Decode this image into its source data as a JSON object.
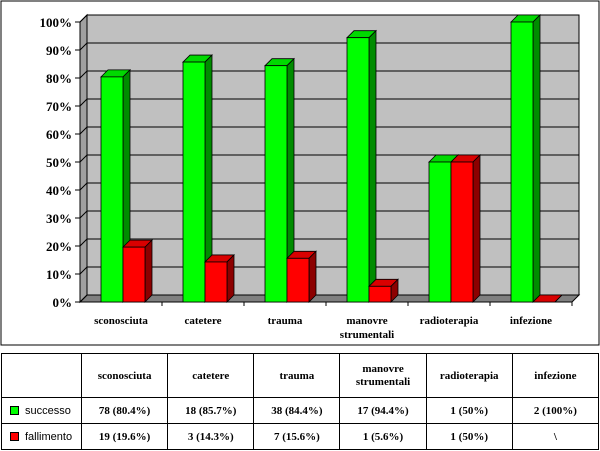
{
  "chart_data": {
    "type": "bar",
    "categories": [
      "sconosciuta",
      "catetere",
      "trauma",
      "manovre strumentali",
      "radioterapia",
      "infezione"
    ],
    "series": [
      {
        "name": "successo",
        "values": [
          80.4,
          85.7,
          84.4,
          94.4,
          50,
          100
        ],
        "color": "#00ff00"
      },
      {
        "name": "fallimento",
        "values": [
          19.6,
          14.3,
          15.6,
          5.6,
          50,
          0
        ],
        "color": "#ff0000"
      }
    ],
    "ylim": [
      0,
      100
    ],
    "yticks": [
      "0%",
      "10%",
      "20%",
      "30%",
      "40%",
      "50%",
      "60%",
      "70%",
      "80%",
      "90%",
      "100%"
    ],
    "grid": true,
    "legend": "table-bottom",
    "plot_background": "#c0c0c0"
  },
  "table": {
    "headers": [
      "sconosciuta",
      "catetere",
      "trauma",
      "manovre strumentali",
      "radioterapia",
      "infezione"
    ],
    "rows": [
      {
        "label": "successo",
        "cells": [
          "78 (80.4%)",
          "18 (85.7%)",
          "38 (84.4%)",
          "17 (94.4%)",
          "1 (50%)",
          "2 (100%)"
        ]
      },
      {
        "label": "fallimento",
        "cells": [
          "19 (19.6%)",
          "3 (14.3%)",
          "7 (15.6%)",
          "1 (5.6%)",
          "1 (50%)",
          "\\"
        ]
      }
    ]
  }
}
